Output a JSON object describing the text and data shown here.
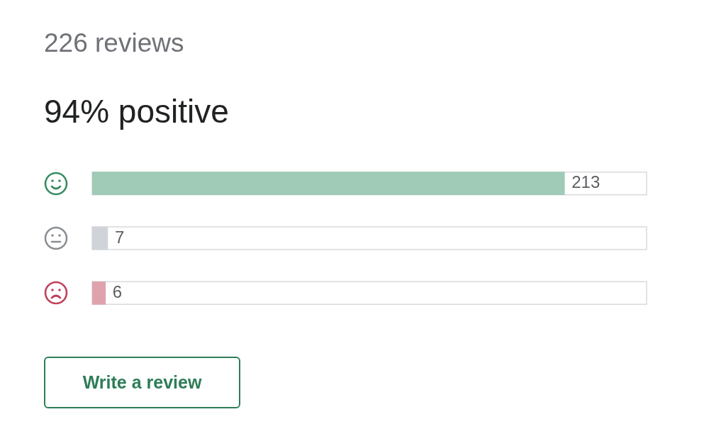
{
  "chart_data": {
    "type": "bar",
    "orientation": "horizontal",
    "title": "226 reviews",
    "subtitle": "94% positive",
    "categories": [
      null,
      null,
      null
    ],
    "values": [
      213,
      7,
      6
    ],
    "colors": [
      "#a0cbb6",
      "#d0d4d8",
      "#dea3ad"
    ],
    "tick_labels": false,
    "legend": false,
    "data_labels": true,
    "annotations": [
      "Write a review"
    ]
  }
}
